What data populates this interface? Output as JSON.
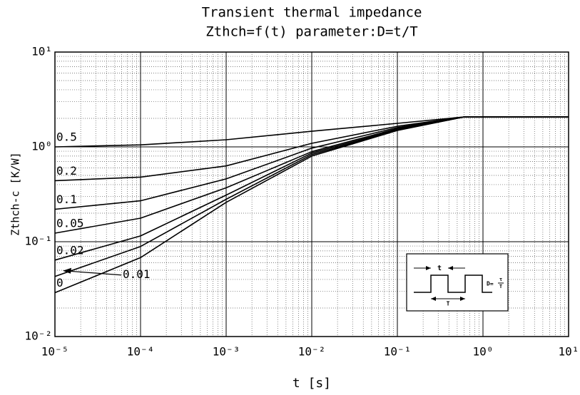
{
  "chart_data": {
    "type": "line",
    "title": "Transient thermal impedance",
    "subtitle": "Zthch=f(t) parameter:D=t/T",
    "x_label": "t [s]",
    "y_label": "Zthch-c [K/W]",
    "log_x": true,
    "log_y": true,
    "grid": true,
    "minor_grid": true,
    "xlim": [
      1e-05,
      10
    ],
    "ylim": [
      0.01,
      10
    ],
    "xticks": [
      {
        "value": 1e-05,
        "label": "10⁻⁵"
      },
      {
        "value": 0.0001,
        "label": "10⁻⁴"
      },
      {
        "value": 0.001,
        "label": "10⁻³"
      },
      {
        "value": 0.01,
        "label": "10⁻²"
      },
      {
        "value": 0.1,
        "label": "10⁻¹"
      },
      {
        "value": 1,
        "label": "10⁰"
      },
      {
        "value": 10,
        "label": "10¹"
      }
    ],
    "yticks": [
      {
        "value": 0.01,
        "label": "10⁻²"
      },
      {
        "value": 0.1,
        "label": "10⁻¹"
      },
      {
        "value": 1,
        "label": "10⁰"
      },
      {
        "value": 10,
        "label": "10¹"
      }
    ],
    "x": [
      1e-05,
      0.0001,
      0.001,
      0.01,
      0.1,
      0.6,
      10
    ],
    "series": [
      {
        "name": "0.5",
        "color": "#000000",
        "values": [
          1.0,
          1.05,
          1.19,
          1.46,
          1.77,
          2.07,
          2.07
        ]
      },
      {
        "name": "0.2",
        "color": "#000000",
        "values": [
          0.44,
          0.48,
          0.63,
          1.09,
          1.65,
          2.07,
          2.07
        ]
      },
      {
        "name": "0.1",
        "color": "#000000",
        "values": [
          0.22,
          0.27,
          0.46,
          0.97,
          1.6,
          2.07,
          2.07
        ]
      },
      {
        "name": "0.05",
        "color": "#000000",
        "values": [
          0.123,
          0.177,
          0.37,
          0.89,
          1.56,
          2.07,
          2.07
        ]
      },
      {
        "name": "0.02",
        "color": "#000000",
        "values": [
          0.064,
          0.115,
          0.31,
          0.86,
          1.52,
          2.07,
          2.07
        ]
      },
      {
        "name": "0.01",
        "color": "#000000",
        "values": [
          0.043,
          0.089,
          0.28,
          0.83,
          1.5,
          2.07,
          2.07
        ]
      },
      {
        "name": "0",
        "color": "#000000",
        "values": [
          0.029,
          0.068,
          0.26,
          0.8,
          1.49,
          2.07,
          2.07
        ]
      }
    ],
    "inset": {
      "pulse_width": "t",
      "period": "T",
      "formula": "D=",
      "numerator": "τ",
      "denominator": "T"
    }
  }
}
